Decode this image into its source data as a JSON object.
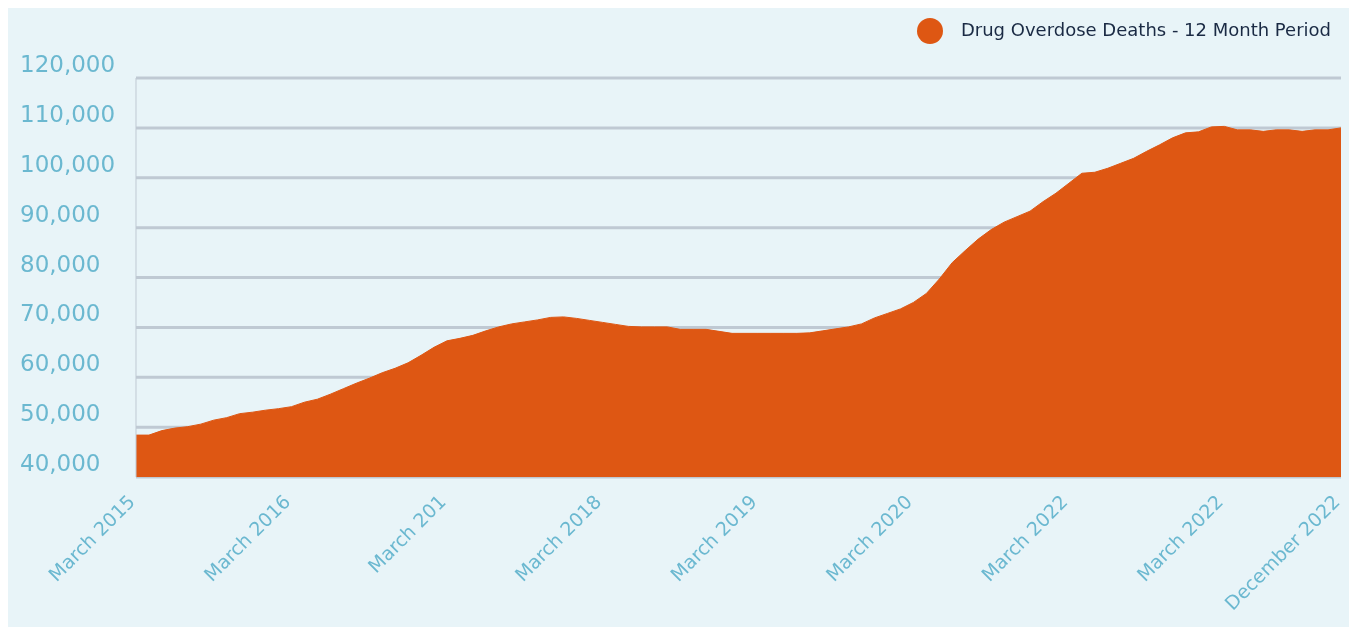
{
  "chart_data": {
    "type": "area",
    "categories": [
      "March 2015",
      null,
      null,
      null,
      null,
      null,
      null,
      null,
      null,
      null,
      null,
      null,
      "March 2016",
      null,
      null,
      null,
      null,
      null,
      null,
      null,
      null,
      null,
      null,
      null,
      "March 201",
      null,
      null,
      null,
      null,
      null,
      null,
      null,
      null,
      null,
      null,
      null,
      "March 2018",
      null,
      null,
      null,
      null,
      null,
      null,
      null,
      null,
      null,
      null,
      null,
      "March 2019",
      null,
      null,
      null,
      null,
      null,
      null,
      null,
      null,
      null,
      null,
      null,
      "March 2020",
      null,
      null,
      null,
      null,
      null,
      null,
      null,
      null,
      null,
      null,
      null,
      "March 2022",
      null,
      null,
      null,
      null,
      null,
      null,
      null,
      null,
      null,
      null,
      null,
      "March 2022",
      null,
      null,
      null,
      null,
      null,
      null,
      null,
      null,
      "December 2022"
    ],
    "series": [
      {
        "name": "Drug Overdose Deaths - 12 Month Period",
        "color": "#de5713",
        "values": [
          48400,
          48400,
          49300,
          49800,
          50100,
          50600,
          51400,
          51900,
          52700,
          53000,
          53400,
          53700,
          54100,
          55000,
          55600,
          56600,
          57700,
          58800,
          59800,
          60900,
          61800,
          62900,
          64400,
          66000,
          67300,
          67800,
          68400,
          69300,
          70100,
          70700,
          71100,
          71500,
          72000,
          72100,
          71800,
          71400,
          71000,
          70600,
          70200,
          70100,
          70100,
          70100,
          69600,
          69600,
          69600,
          69200,
          68800,
          68800,
          68800,
          68800,
          68800,
          68800,
          68900,
          69300,
          69700,
          70100,
          70700,
          71900,
          72800,
          73700,
          75000,
          76800,
          79700,
          83000,
          85400,
          87700,
          89600,
          91100,
          92200,
          93300,
          95200,
          96900,
          98900,
          100900,
          101100,
          101900,
          102900,
          103900,
          105300,
          106600,
          108000,
          109000,
          109200,
          110200,
          110300,
          109600,
          109600,
          109300,
          109600,
          109600,
          109300,
          109600,
          109600,
          110000
        ]
      }
    ],
    "ylim": [
      40000,
      120000
    ],
    "yticks": [
      {
        "value": 40000,
        "label": "40,000"
      },
      {
        "value": 50000,
        "label": "50,000"
      },
      {
        "value": 60000,
        "label": "60,000"
      },
      {
        "value": 70000,
        "label": "70,000"
      },
      {
        "value": 80000,
        "label": "80,000"
      },
      {
        "value": 90000,
        "label": "90,000"
      },
      {
        "value": 100000,
        "label": "100,000"
      },
      {
        "value": 110000,
        "label": "110,000"
      },
      {
        "value": 120000,
        "label": "120,000"
      }
    ],
    "grid": "y",
    "legend": "top right"
  }
}
